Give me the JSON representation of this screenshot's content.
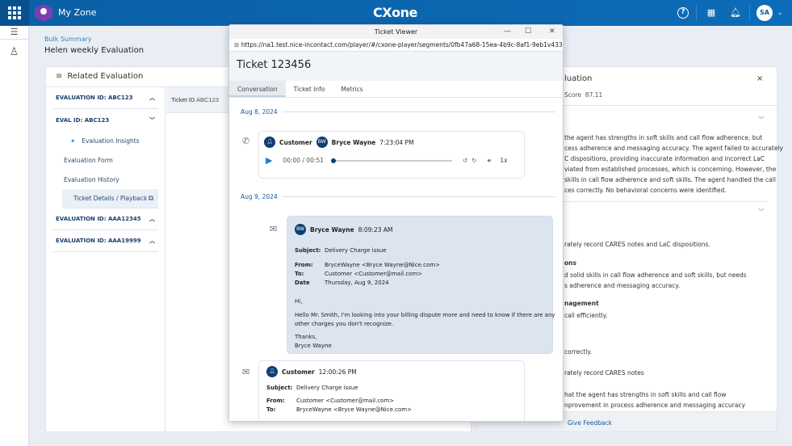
{
  "topbar": {
    "app_name": "My Zone",
    "brand": "CXone",
    "user_initials": "SA"
  },
  "page": {
    "breadcrumb": "Bulk Summary",
    "title": "Helen weekly Evaluation"
  },
  "related": {
    "title": "Related Evaluation",
    "groups": [
      {
        "label": "EVALUATION ID: ABC123"
      },
      {
        "label": "EVAL ID: ABC123",
        "items": [
          "Evaluation Insights",
          "Evaluation Form",
          "Evaluation History",
          "Ticket Details / Playback"
        ]
      },
      {
        "label": "EVALUATION ID: AAA12345"
      },
      {
        "label": "EVALUATION ID: AAA19999"
      }
    ],
    "ticket_id_label": "Ticket ID",
    "ticket_id": "ABC123"
  },
  "right_panel": {
    "title_fragment": "luation",
    "score_label": "Score",
    "score": "87.11",
    "feedback": "Give Feedback",
    "lines": [
      "the agent has strengths in soft skills and call flow adherence, but",
      "cess adherence and messaging accuracy. The agent failed to accurately",
      "C dispositions, providing inaccurate information and incorrect LaC",
      "viated from established processes, which is concerning. However, the",
      "skills in call flow adherence and soft skills. The agent handled the call",
      "ces correctly. No behavioral concerns were identified."
    ],
    "lines2": [
      "rately record CARES notes and LaC dispositions.",
      "ons",
      "d solid skills in call flow adherence and soft skills, but needs",
      "s adherence and messaging accuracy.",
      "nagement",
      "call efficiently.",
      "correctly.",
      "rately record CARES notes",
      "hat the agent has strengths in soft skills and call flow",
      "nprovement in process adherence and messaging accuracy"
    ]
  },
  "viewer": {
    "window_title": "Ticket Viewer",
    "url": "https://na1.test.nice-incontact.com/player/#/cxone-player/segments/0fb47a68-15ea-4b9c-8af1-9eb1v43397fc",
    "ticket": "Ticket 123456",
    "tabs": [
      "Conversation",
      "Ticket Info",
      "Metrics"
    ],
    "date1": "Aug 8, 2024",
    "date2": "Aug 9, 2024",
    "call": {
      "customer": "Customer",
      "agent_initials": "BW",
      "agent": "Bryce Wayne",
      "time": "7:23:04 PM",
      "position": "00:00 / 00:51",
      "speed": "1x",
      "progress": 0
    },
    "email1": {
      "initials": "BW",
      "sender": "Bryce Wayne",
      "time": "8:09:23 AM",
      "subject_label": "Subject:",
      "subject": "Delivery Charge issue",
      "from_label": "From:",
      "from": "BryceWayne <Bryce Wayne@Nice.com>",
      "to_label": "To:",
      "to": "Customer <Customer@mail.com>",
      "date_label": "Date",
      "date": "Thursday, Aug 9, 2024",
      "greeting": "Hi,",
      "body1": "Hello Mr. Smith, I'm looking into your billing dispute more and need to know if there are any",
      "body2": "other charges you don't recognize.",
      "sign1": "Thanks,",
      "sign2": "Bryce Wayne"
    },
    "email2": {
      "sender": "Customer",
      "time": "12:00:26 PM",
      "subject_label": "Subject:",
      "subject": "Delivery Charge issue",
      "from_label": "From:",
      "from": "Customer <Customer@mail.com>",
      "to_label": "To:",
      "to": "BryceWayne <Bryce Wayne@Nice.com>"
    }
  },
  "colors": {
    "topbar": "#0b5fa5",
    "accent": "#1b5a99",
    "email_bubble": "#dce5ef"
  }
}
